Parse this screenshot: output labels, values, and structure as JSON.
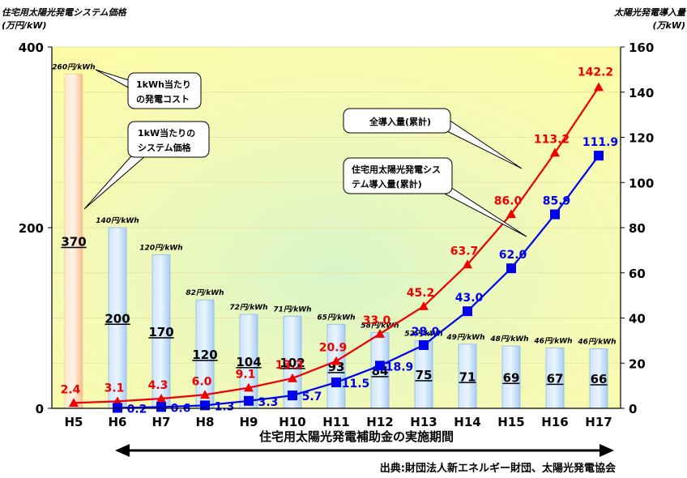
{
  "chart_data": {
    "type": "bar",
    "y_left_title_1": "住宅用太陽光発電システム価格",
    "y_left_title_2": "(万円/kW)",
    "y_right_title_1": "太陽光発電導入量",
    "y_right_title_2": "(万kW)",
    "ylim_left": [
      0,
      400
    ],
    "yticks_left": [
      "0",
      "200",
      "400"
    ],
    "ylim_right": [
      0,
      160
    ],
    "yticks_right": [
      "0",
      "20",
      "40",
      "60",
      "80",
      "100",
      "120",
      "140",
      "160"
    ],
    "categories": [
      "H5",
      "H6",
      "H7",
      "H8",
      "H9",
      "H10",
      "H11",
      "H12",
      "H13",
      "H14",
      "H15",
      "H16",
      "H17"
    ],
    "price_series": {
      "values": [
        370,
        200,
        170,
        120,
        104,
        102,
        93,
        84,
        75,
        71,
        69,
        67,
        66
      ],
      "labels": [
        "370",
        "200",
        "170",
        "120",
        "104",
        "102",
        "93",
        "84",
        "75",
        "71",
        "69",
        "67",
        "66"
      ]
    },
    "cost_labels": [
      "260円/kWh",
      "140円/kWh",
      "120円/kWh",
      "82円/kWh",
      "72円/kWh",
      "71円/kWh",
      "65円/kWh",
      "58円/kWh",
      "52円/kWh",
      "49円/kWh",
      "48円/kWh",
      "46円/kWh",
      "46円/kWh"
    ],
    "total_series": {
      "name": "全導入量(累計)",
      "color": "#ee0000",
      "values": [
        2.4,
        3.1,
        4.3,
        6.0,
        9.1,
        13.3,
        20.9,
        33.0,
        45.2,
        63.7,
        86.0,
        113.2,
        142.2
      ],
      "labels": [
        "2.4",
        "3.1",
        "4.3",
        "6.0",
        "9.1",
        "13.3",
        "20.9",
        "33.0",
        "45.2",
        "63.7",
        "86.0",
        "113.2",
        "142.2"
      ]
    },
    "residential_series": {
      "name": "住宅用太陽光発電システム導入量(累計)",
      "name_line1": "住宅用太陽光発電シス",
      "name_line2": "テム導入量(累計)",
      "color": "#0000ee",
      "start_index": 1,
      "values": [
        0.2,
        0.6,
        1.3,
        3.3,
        5.7,
        11.5,
        18.9,
        28.0,
        43.0,
        62.0,
        85.9,
        111.9
      ],
      "labels": [
        "0.2",
        "0.6",
        "1.3",
        "3.3",
        "5.7",
        "11.5",
        "18.9",
        "28.0",
        "43.0",
        "62.0",
        "85.9",
        "111.9"
      ]
    },
    "callouts": {
      "cost_line1": "1kWh当たり",
      "cost_line2": "の発電コスト",
      "price_line1": "1kW当たりの",
      "price_line2": "システム価格"
    },
    "subsidy_period_label": "住宅用太陽光発電補助金の実施期間",
    "source": "出典:財団法人新エネルギー財団、太陽光発電協会"
  }
}
